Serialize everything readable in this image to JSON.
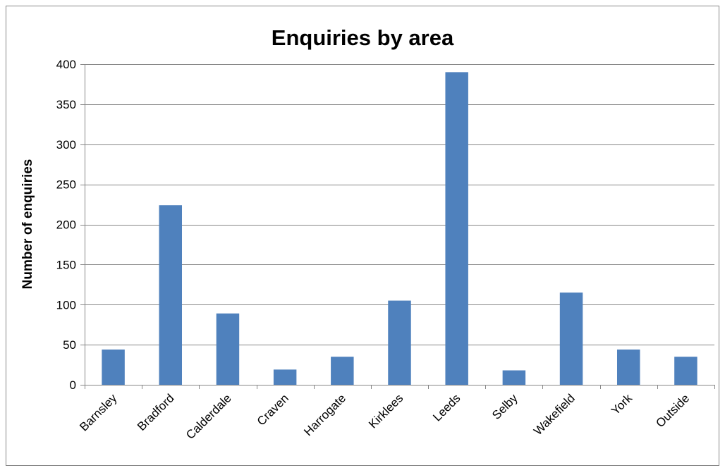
{
  "chart_data": {
    "type": "bar",
    "title": "Enquiries by area",
    "xlabel": "",
    "ylabel": "Number of enquiries",
    "categories": [
      "Barnsley",
      "Bradford",
      "Calderdale",
      "Craven",
      "Harrogate",
      "Kirklees",
      "Leeds",
      "Selby",
      "Wakefield",
      "York",
      "Outside"
    ],
    "values": [
      44,
      224,
      89,
      19,
      35,
      105,
      390,
      18,
      115,
      44,
      35
    ],
    "ylim": [
      0,
      400
    ],
    "yticks": [
      "0",
      "50",
      "100",
      "150",
      "200",
      "250",
      "300",
      "350",
      "400"
    ],
    "grid": true,
    "legend": "none",
    "bar_color": "#4f81bd"
  }
}
